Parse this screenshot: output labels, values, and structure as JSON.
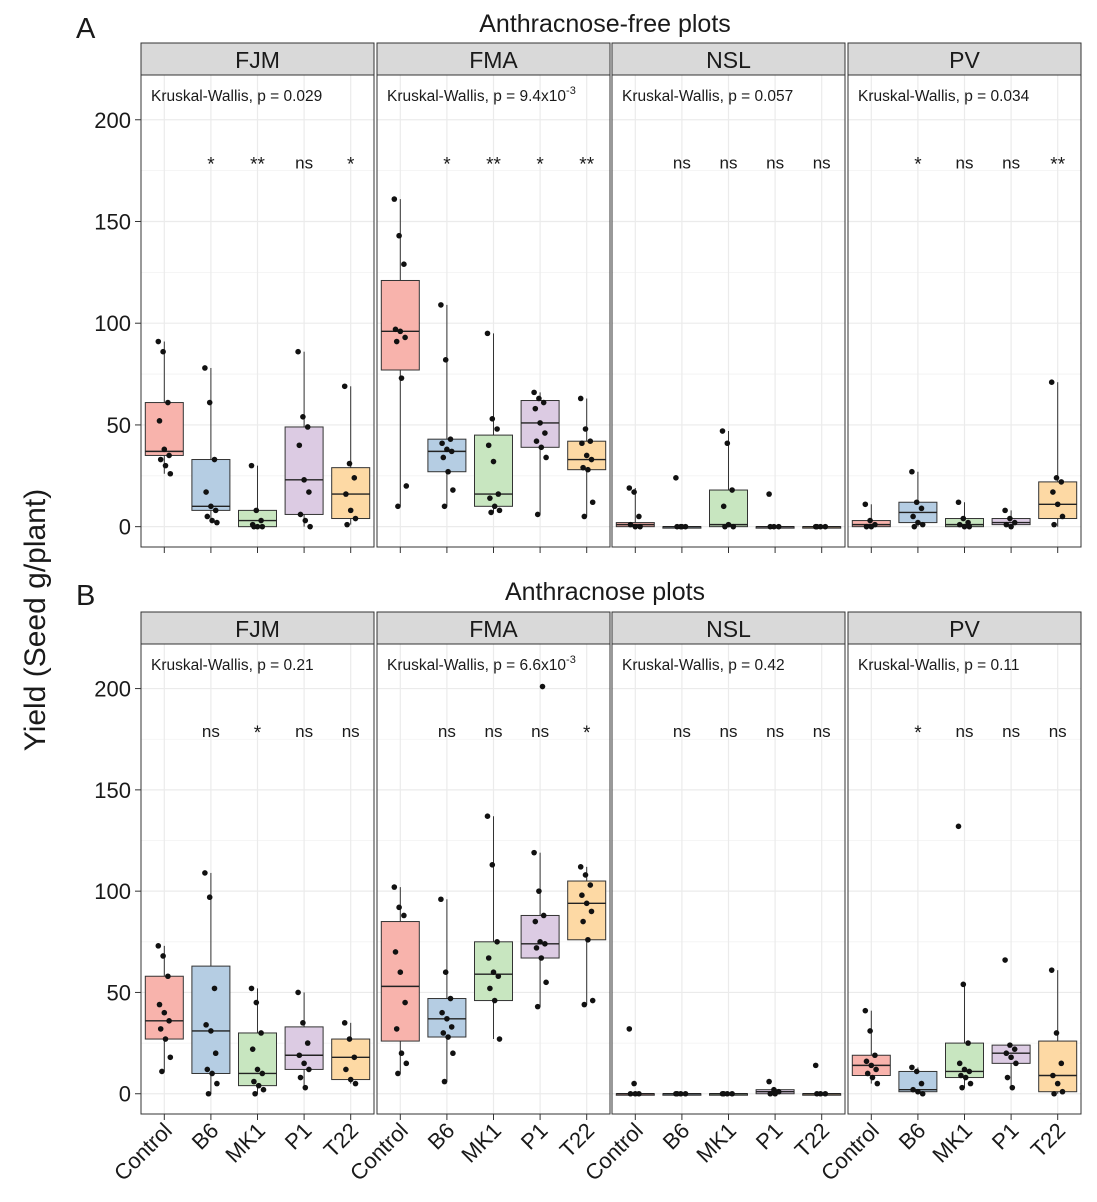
{
  "figure": {
    "ylabel": "Yield (Seed g/plant)",
    "categories": [
      "Control",
      "B6",
      "MK1",
      "P1",
      "T22"
    ],
    "y_ticks": [
      0,
      50,
      100,
      150,
      200
    ],
    "colors": {
      "Control": "#f8b3ac",
      "B6": "#b5cde3",
      "MK1": "#c8e6c0",
      "P1": "#dccbe3",
      "T22": "#fdd9a4",
      "strip": "#d9d9d9",
      "grid": "#ebebeb",
      "text": "#1a1a1a"
    }
  },
  "chart_data": [
    {
      "type": "boxplot",
      "panel_letter": "A",
      "title": "Anthracnose-free plots",
      "ylabel": "Yield (Seed g/plant)",
      "ylim": [
        -10,
        222
      ],
      "y_ticks": [
        0,
        50,
        100,
        150,
        200
      ],
      "facets": [
        {
          "name": "FJM",
          "test_label": "Kruskal-Wallis, p = 0.029",
          "significance": [
            "*",
            "**",
            "ns",
            "*"
          ],
          "groups": [
            {
              "category": "Control",
              "q1": 35,
              "median": 37,
              "q3": 61,
              "whisker_low": 26,
              "whisker_high": 91,
              "points": [
                91,
                86,
                61,
                52,
                38,
                35,
                33,
                30,
                26
              ]
            },
            {
              "category": "B6",
              "q1": 8,
              "median": 10,
              "q3": 33,
              "whisker_low": 2,
              "whisker_high": 78,
              "points": [
                78,
                61,
                33,
                17,
                10,
                8,
                5,
                3,
                2
              ]
            },
            {
              "category": "MK1",
              "q1": 0,
              "median": 3,
              "q3": 8,
              "whisker_low": 0,
              "whisker_high": 30,
              "points": [
                30,
                8,
                3,
                1,
                0,
                0,
                0
              ]
            },
            {
              "category": "P1",
              "q1": 6,
              "median": 23,
              "q3": 49,
              "whisker_low": 0,
              "whisker_high": 86,
              "points": [
                86,
                54,
                49,
                40,
                23,
                17,
                6,
                3,
                0
              ]
            },
            {
              "category": "T22",
              "q1": 4,
              "median": 16,
              "q3": 29,
              "whisker_low": 1,
              "whisker_high": 69,
              "points": [
                69,
                31,
                24,
                16,
                8,
                4,
                1
              ]
            }
          ]
        },
        {
          "name": "FMA",
          "test_label": "Kruskal-Wallis, p = 9.4x10",
          "test_label_exp": "-3",
          "significance": [
            "*",
            "**",
            "*",
            "**"
          ],
          "groups": [
            {
              "category": "Control",
              "q1": 77,
              "median": 96,
              "q3": 121,
              "whisker_low": 10,
              "whisker_high": 161,
              "points": [
                161,
                143,
                129,
                97,
                96,
                93,
                91,
                73,
                20,
                10
              ]
            },
            {
              "category": "B6",
              "q1": 27,
              "median": 37,
              "q3": 43,
              "whisker_low": 10,
              "whisker_high": 109,
              "points": [
                109,
                82,
                43,
                41,
                38,
                37,
                34,
                27,
                18,
                10
              ]
            },
            {
              "category": "MK1",
              "q1": 10,
              "median": 16,
              "q3": 45,
              "whisker_low": 7,
              "whisker_high": 95,
              "points": [
                95,
                53,
                48,
                40,
                32,
                16,
                14,
                10,
                8,
                7
              ]
            },
            {
              "category": "P1",
              "q1": 39,
              "median": 51,
              "q3": 62,
              "whisker_low": 6,
              "whisker_high": 66,
              "points": [
                66,
                63,
                61,
                58,
                51,
                46,
                42,
                39,
                34,
                6
              ]
            },
            {
              "category": "T22",
              "q1": 28,
              "median": 33,
              "q3": 42,
              "whisker_low": 5,
              "whisker_high": 63,
              "points": [
                63,
                48,
                42,
                41,
                35,
                33,
                29,
                28,
                12,
                5
              ]
            }
          ]
        },
        {
          "name": "NSL",
          "test_label": "Kruskal-Wallis, p = 0.057",
          "significance": [
            "ns",
            "ns",
            "ns",
            "ns"
          ],
          "groups": [
            {
              "category": "Control",
              "q1": 0,
              "median": 1,
              "q3": 2,
              "whisker_low": 0,
              "whisker_high": 19,
              "points": [
                19,
                17,
                5,
                1,
                0,
                0
              ]
            },
            {
              "category": "B6",
              "q1": 0,
              "median": 0,
              "q3": 0,
              "whisker_low": 0,
              "whisker_high": 0,
              "points": [
                24,
                0,
                0,
                0,
                0
              ]
            },
            {
              "category": "MK1",
              "q1": 0,
              "median": 1,
              "q3": 18,
              "whisker_low": 0,
              "whisker_high": 47,
              "points": [
                47,
                41,
                18,
                10,
                1,
                0,
                0
              ]
            },
            {
              "category": "P1",
              "q1": 0,
              "median": 0,
              "q3": 0,
              "whisker_low": 0,
              "whisker_high": 0,
              "points": [
                16,
                0,
                0,
                0
              ]
            },
            {
              "category": "T22",
              "q1": 0,
              "median": 0,
              "q3": 0,
              "whisker_low": 0,
              "whisker_high": 0,
              "points": [
                0,
                0,
                0,
                0
              ]
            }
          ]
        },
        {
          "name": "PV",
          "test_label": "Kruskal-Wallis, p = 0.034",
          "significance": [
            "*",
            "ns",
            "ns",
            "**"
          ],
          "groups": [
            {
              "category": "Control",
              "q1": 0,
              "median": 1,
              "q3": 3,
              "whisker_low": 0,
              "whisker_high": 11,
              "points": [
                11,
                3,
                1,
                0,
                0
              ]
            },
            {
              "category": "B6",
              "q1": 2,
              "median": 7,
              "q3": 12,
              "whisker_low": 0,
              "whisker_high": 27,
              "points": [
                27,
                12,
                9,
                5,
                2,
                1,
                0
              ]
            },
            {
              "category": "MK1",
              "q1": 0,
              "median": 1,
              "q3": 4,
              "whisker_low": 0,
              "whisker_high": 12,
              "points": [
                12,
                4,
                2,
                1,
                0,
                0
              ]
            },
            {
              "category": "P1",
              "q1": 1,
              "median": 2,
              "q3": 4,
              "whisker_low": 0,
              "whisker_high": 8,
              "points": [
                8,
                4,
                2,
                1,
                0
              ]
            },
            {
              "category": "T22",
              "q1": 4,
              "median": 11,
              "q3": 22,
              "whisker_low": 0,
              "whisker_high": 71,
              "points": [
                71,
                24,
                22,
                17,
                11,
                5,
                1
              ]
            }
          ]
        }
      ]
    },
    {
      "type": "boxplot",
      "panel_letter": "B",
      "title": "Anthracnose plots",
      "ylabel": "Yield (Seed g/plant)",
      "ylim": [
        -10,
        222
      ],
      "y_ticks": [
        0,
        50,
        100,
        150,
        200
      ],
      "facets": [
        {
          "name": "FJM",
          "test_label": "Kruskal-Wallis, p = 0.21",
          "significance": [
            "ns",
            "*",
            "ns",
            "ns"
          ],
          "groups": [
            {
              "category": "Control",
              "q1": 27,
              "median": 36,
              "q3": 58,
              "whisker_low": 11,
              "whisker_high": 73,
              "points": [
                73,
                68,
                58,
                44,
                40,
                36,
                32,
                27,
                18,
                11
              ]
            },
            {
              "category": "B6",
              "q1": 10,
              "median": 31,
              "q3": 63,
              "whisker_low": 0,
              "whisker_high": 109,
              "points": [
                109,
                97,
                52,
                34,
                31,
                20,
                12,
                10,
                5,
                0
              ]
            },
            {
              "category": "MK1",
              "q1": 4,
              "median": 10,
              "q3": 30,
              "whisker_low": 0,
              "whisker_high": 52,
              "points": [
                52,
                45,
                30,
                22,
                12,
                10,
                6,
                4,
                2,
                0
              ]
            },
            {
              "category": "P1",
              "q1": 12,
              "median": 19,
              "q3": 33,
              "whisker_low": 3,
              "whisker_high": 50,
              "points": [
                50,
                35,
                25,
                19,
                15,
                12,
                8,
                3
              ]
            },
            {
              "category": "T22",
              "q1": 7,
              "median": 18,
              "q3": 27,
              "whisker_low": 5,
              "whisker_high": 35,
              "points": [
                35,
                27,
                18,
                12,
                7,
                5
              ]
            }
          ]
        },
        {
          "name": "FMA",
          "test_label": "Kruskal-Wallis, p = 6.6x10",
          "test_label_exp": "-3",
          "significance": [
            "ns",
            "ns",
            "ns",
            "*"
          ],
          "groups": [
            {
              "category": "Control",
              "q1": 26,
              "median": 53,
              "q3": 85,
              "whisker_low": 10,
              "whisker_high": 102,
              "points": [
                102,
                92,
                88,
                70,
                60,
                45,
                32,
                20,
                15,
                10
              ]
            },
            {
              "category": "B6",
              "q1": 28,
              "median": 37,
              "q3": 47,
              "whisker_low": 6,
              "whisker_high": 96,
              "points": [
                96,
                60,
                47,
                40,
                37,
                33,
                30,
                28,
                20,
                6
              ]
            },
            {
              "category": "MK1",
              "q1": 46,
              "median": 59,
              "q3": 75,
              "whisker_low": 27,
              "whisker_high": 137,
              "points": [
                137,
                113,
                75,
                67,
                60,
                58,
                52,
                46,
                27
              ]
            },
            {
              "category": "P1",
              "q1": 67,
              "median": 74,
              "q3": 88,
              "whisker_low": 43,
              "whisker_high": 119,
              "points": [
                119,
                100,
                88,
                85,
                75,
                74,
                72,
                67,
                55,
                43,
                201
              ]
            },
            {
              "category": "T22",
              "q1": 76,
              "median": 94,
              "q3": 105,
              "whisker_low": 44,
              "whisker_high": 112,
              "points": [
                112,
                108,
                103,
                98,
                94,
                90,
                85,
                76,
                46,
                44
              ]
            }
          ]
        },
        {
          "name": "NSL",
          "test_label": "Kruskal-Wallis, p = 0.42",
          "significance": [
            "ns",
            "ns",
            "ns",
            "ns"
          ],
          "groups": [
            {
              "category": "Control",
              "q1": 0,
              "median": 0,
              "q3": 0,
              "whisker_low": 0,
              "whisker_high": 0,
              "points": [
                32,
                5,
                0,
                0,
                0
              ]
            },
            {
              "category": "B6",
              "q1": 0,
              "median": 0,
              "q3": 0,
              "whisker_low": 0,
              "whisker_high": 0,
              "points": [
                0,
                0,
                0,
                0
              ]
            },
            {
              "category": "MK1",
              "q1": 0,
              "median": 0,
              "q3": 0,
              "whisker_low": 0,
              "whisker_high": 0,
              "points": [
                0,
                0,
                0,
                0
              ]
            },
            {
              "category": "P1",
              "q1": 0,
              "median": 1,
              "q3": 2,
              "whisker_low": 0,
              "whisker_high": 3,
              "points": [
                6,
                2,
                1,
                0,
                0
              ]
            },
            {
              "category": "T22",
              "q1": 0,
              "median": 0,
              "q3": 0,
              "whisker_low": 0,
              "whisker_high": 0,
              "points": [
                14,
                0,
                0,
                0
              ]
            }
          ]
        },
        {
          "name": "PV",
          "test_label": "Kruskal-Wallis, p = 0.11",
          "significance": [
            "*",
            "ns",
            "ns",
            "ns"
          ],
          "groups": [
            {
              "category": "Control",
              "q1": 9,
              "median": 14,
              "q3": 19,
              "whisker_low": 5,
              "whisker_high": 41,
              "points": [
                41,
                31,
                19,
                16,
                14,
                12,
                10,
                8,
                5
              ]
            },
            {
              "category": "B6",
              "q1": 1,
              "median": 2,
              "q3": 11,
              "whisker_low": 0,
              "whisker_high": 13,
              "points": [
                13,
                11,
                5,
                2,
                1,
                0
              ]
            },
            {
              "category": "MK1",
              "q1": 8,
              "median": 11,
              "q3": 25,
              "whisker_low": 3,
              "whisker_high": 54,
              "points": [
                132,
                54,
                25,
                15,
                12,
                11,
                9,
                8,
                5,
                3
              ]
            },
            {
              "category": "P1",
              "q1": 15,
              "median": 20,
              "q3": 24,
              "whisker_low": 3,
              "whisker_high": 24,
              "points": [
                66,
                24,
                22,
                20,
                18,
                15,
                8,
                3
              ]
            },
            {
              "category": "T22",
              "q1": 1,
              "median": 9,
              "q3": 26,
              "whisker_low": 0,
              "whisker_high": 61,
              "points": [
                61,
                30,
                15,
                9,
                5,
                1,
                0
              ]
            }
          ]
        }
      ]
    }
  ]
}
